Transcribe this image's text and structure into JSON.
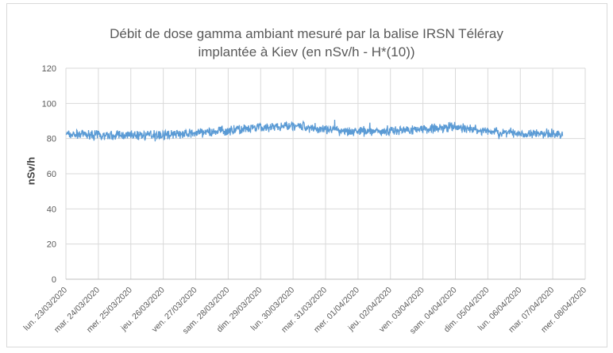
{
  "chart_data": {
    "type": "line",
    "title_line1": "Débit de dose gamma ambiant mesuré par la balise IRSN Téléray",
    "title_line2": "implantée à Kiev (en nSv/h - H*(10))",
    "xlabel": "",
    "ylabel": "nSv/h",
    "ylim": [
      0,
      120
    ],
    "yticks": [
      0,
      20,
      40,
      60,
      80,
      100,
      120
    ],
    "grid": true,
    "legend": "none",
    "x_categories": [
      "lun. 23/03/2020",
      "mar. 24/03/2020",
      "mer. 25/03/2020",
      "jeu. 26/03/2020",
      "ven. 27/03/2020",
      "sam. 28/03/2020",
      "dim. 29/03/2020",
      "lun. 30/03/2020",
      "mar. 31/03/2020",
      "mer. 01/04/2020",
      "jeu. 02/04/2020",
      "ven. 03/04/2020",
      "sam. 04/04/2020",
      "dim. 05/04/2020",
      "lun. 06/04/2020",
      "mar. 07/04/2020",
      "mer. 08/04/2020"
    ],
    "series": [
      {
        "name": "Débit de dose",
        "color": "#5b9bd5",
        "x_days_from_start": [
          0,
          1,
          2,
          3,
          4,
          5,
          6,
          7,
          8,
          9,
          10,
          11,
          12,
          13,
          14,
          15,
          15.3
        ],
        "daily_mean": [
          82.5,
          82,
          82,
          82,
          83,
          84.5,
          86,
          87.5,
          85,
          84,
          84.5,
          85.5,
          86.5,
          84,
          83,
          82.5,
          82.5
        ],
        "noise_amplitude": 2.5,
        "samples_per_day": 96
      }
    ]
  }
}
